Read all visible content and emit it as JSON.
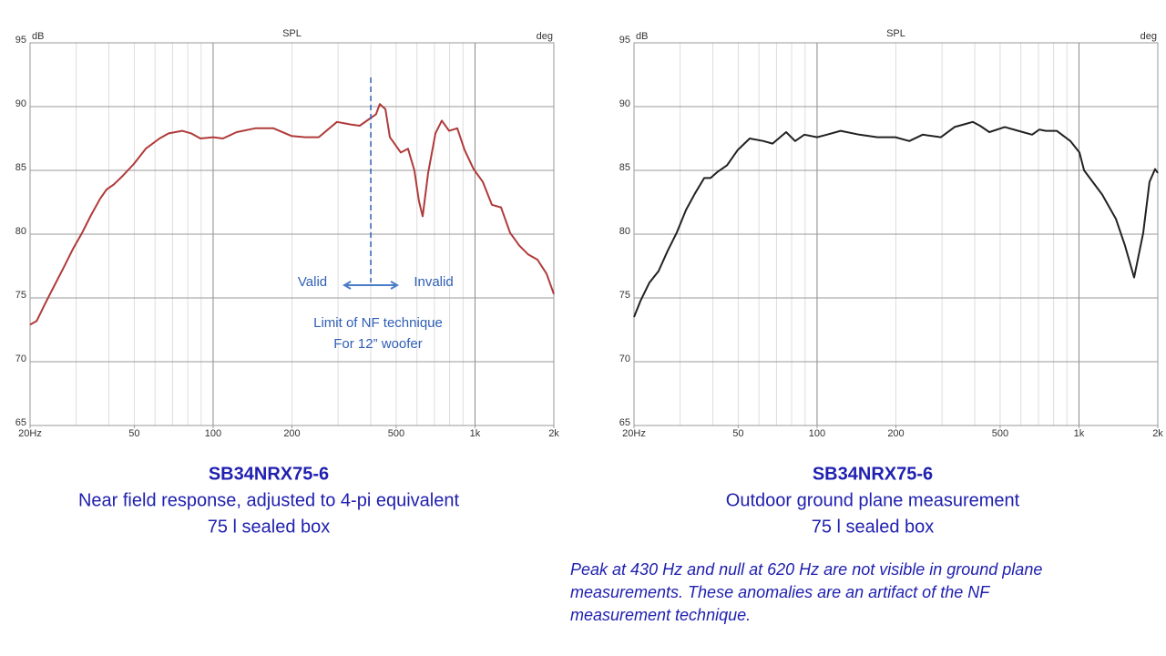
{
  "chart_data": [
    {
      "type": "line",
      "title": "SPL",
      "y_label": "dB",
      "y2_label": "deg",
      "xscale": "log",
      "grid": true,
      "xlim": [
        20,
        2000
      ],
      "ylim": [
        65,
        95
      ],
      "xticks": [
        {
          "value": 20,
          "label": "20Hz"
        },
        50,
        100,
        200,
        500,
        {
          "value": 1000,
          "label": "1k"
        },
        {
          "value": 2000,
          "label": "2k"
        }
      ],
      "yticks": [
        65,
        70,
        75,
        80,
        85,
        90,
        95
      ],
      "x": [
        20,
        21.2,
        22.9,
        24.8,
        26.9,
        29.1,
        31.6,
        34.2,
        37.1,
        39.2,
        41.8,
        45.3,
        49.8,
        55.3,
        62.4,
        67.6,
        76.2,
        82.5,
        89.4,
        100,
        109,
        123,
        145,
        170,
        199,
        225,
        253,
        297,
        335,
        363,
        393,
        419,
        433,
        455,
        473,
        521,
        555,
        587,
        611,
        631,
        662,
        706,
        747,
        796,
        856,
        912,
        988,
        1071,
        1160,
        1257,
        1362,
        1476,
        1598,
        1732,
        1876,
        2000
      ],
      "series": [
        {
          "color": "#b03a3a",
          "values": [
            72.9,
            73.2,
            74.6,
            76,
            77.4,
            78.8,
            80.1,
            81.5,
            82.8,
            83.5,
            83.9,
            84.6,
            85.5,
            86.7,
            87.5,
            87.9,
            88.1,
            87.9,
            87.5,
            87.6,
            87.5,
            88,
            88.3,
            88.3,
            87.7,
            87.6,
            87.6,
            88.8,
            88.6,
            88.5,
            89,
            89.4,
            90.2,
            89.8,
            87.6,
            86.4,
            86.7,
            85,
            82.6,
            81.4,
            84.8,
            87.9,
            88.9,
            88.1,
            88.3,
            86.6,
            85.1,
            84.1,
            82.3,
            82.1,
            80.1,
            79.1,
            78.4,
            78,
            76.9,
            75.3
          ]
        }
      ],
      "limit_line_x": 400,
      "annotations": [
        "Valid",
        "Invalid",
        "Limit of NF technique",
        "For 12” woofer"
      ],
      "caption_title": "SB34NRX75-6",
      "caption_lines": [
        "Near field response, adjusted to 4-pi equivalent",
        "75 l sealed box"
      ]
    },
    {
      "type": "line",
      "title": "SPL",
      "y_label": "dB",
      "y2_label": "deg",
      "xscale": "log",
      "grid": true,
      "xlim": [
        20,
        2000
      ],
      "ylim": [
        65,
        95
      ],
      "xticks": [
        {
          "value": 20,
          "label": "20Hz"
        },
        50,
        100,
        200,
        500,
        {
          "value": 1000,
          "label": "1k"
        },
        {
          "value": 2000,
          "label": "2k"
        }
      ],
      "yticks": [
        65,
        70,
        75,
        80,
        85,
        90,
        95
      ],
      "x": [
        20,
        21.2,
        22.9,
        24.8,
        26.9,
        29.1,
        31.6,
        34.2,
        37.1,
        39.2,
        41.8,
        45.3,
        49.8,
        55.3,
        62.4,
        67.6,
        76.2,
        82.5,
        89.4,
        100,
        109,
        123,
        145,
        170,
        199,
        225,
        253,
        297,
        335,
        363,
        393,
        419,
        455,
        521,
        587,
        662,
        706,
        747,
        822,
        927,
        1004,
        1046,
        1227,
        1384,
        1499,
        1624,
        1760,
        1860,
        1952,
        2000
      ],
      "series": [
        {
          "color": "#222222",
          "values": [
            73.5,
            74.8,
            76.2,
            77.1,
            78.7,
            80.1,
            81.9,
            83.2,
            84.4,
            84.4,
            84.9,
            85.4,
            86.6,
            87.5,
            87.3,
            87.1,
            88,
            87.3,
            87.8,
            87.6,
            87.8,
            88.1,
            87.8,
            87.6,
            87.6,
            87.3,
            87.8,
            87.6,
            88.4,
            88.6,
            88.8,
            88.5,
            88,
            88.4,
            88.1,
            87.8,
            88.2,
            88.1,
            88.1,
            87.3,
            86.4,
            85,
            83.1,
            81.2,
            79.1,
            76.6,
            80.1,
            84.1,
            85.1,
            84.8
          ]
        }
      ],
      "caption_title": "SB34NRX75-6",
      "caption_lines": [
        "Outdoor ground plane measurement",
        "75 l sealed box"
      ]
    }
  ],
  "note": [
    "Peak at 430 Hz and null at 620 Hz are not visible in ground plane",
    "measurements.  These anomalies are an artifact of the NF",
    "measurement technique."
  ]
}
